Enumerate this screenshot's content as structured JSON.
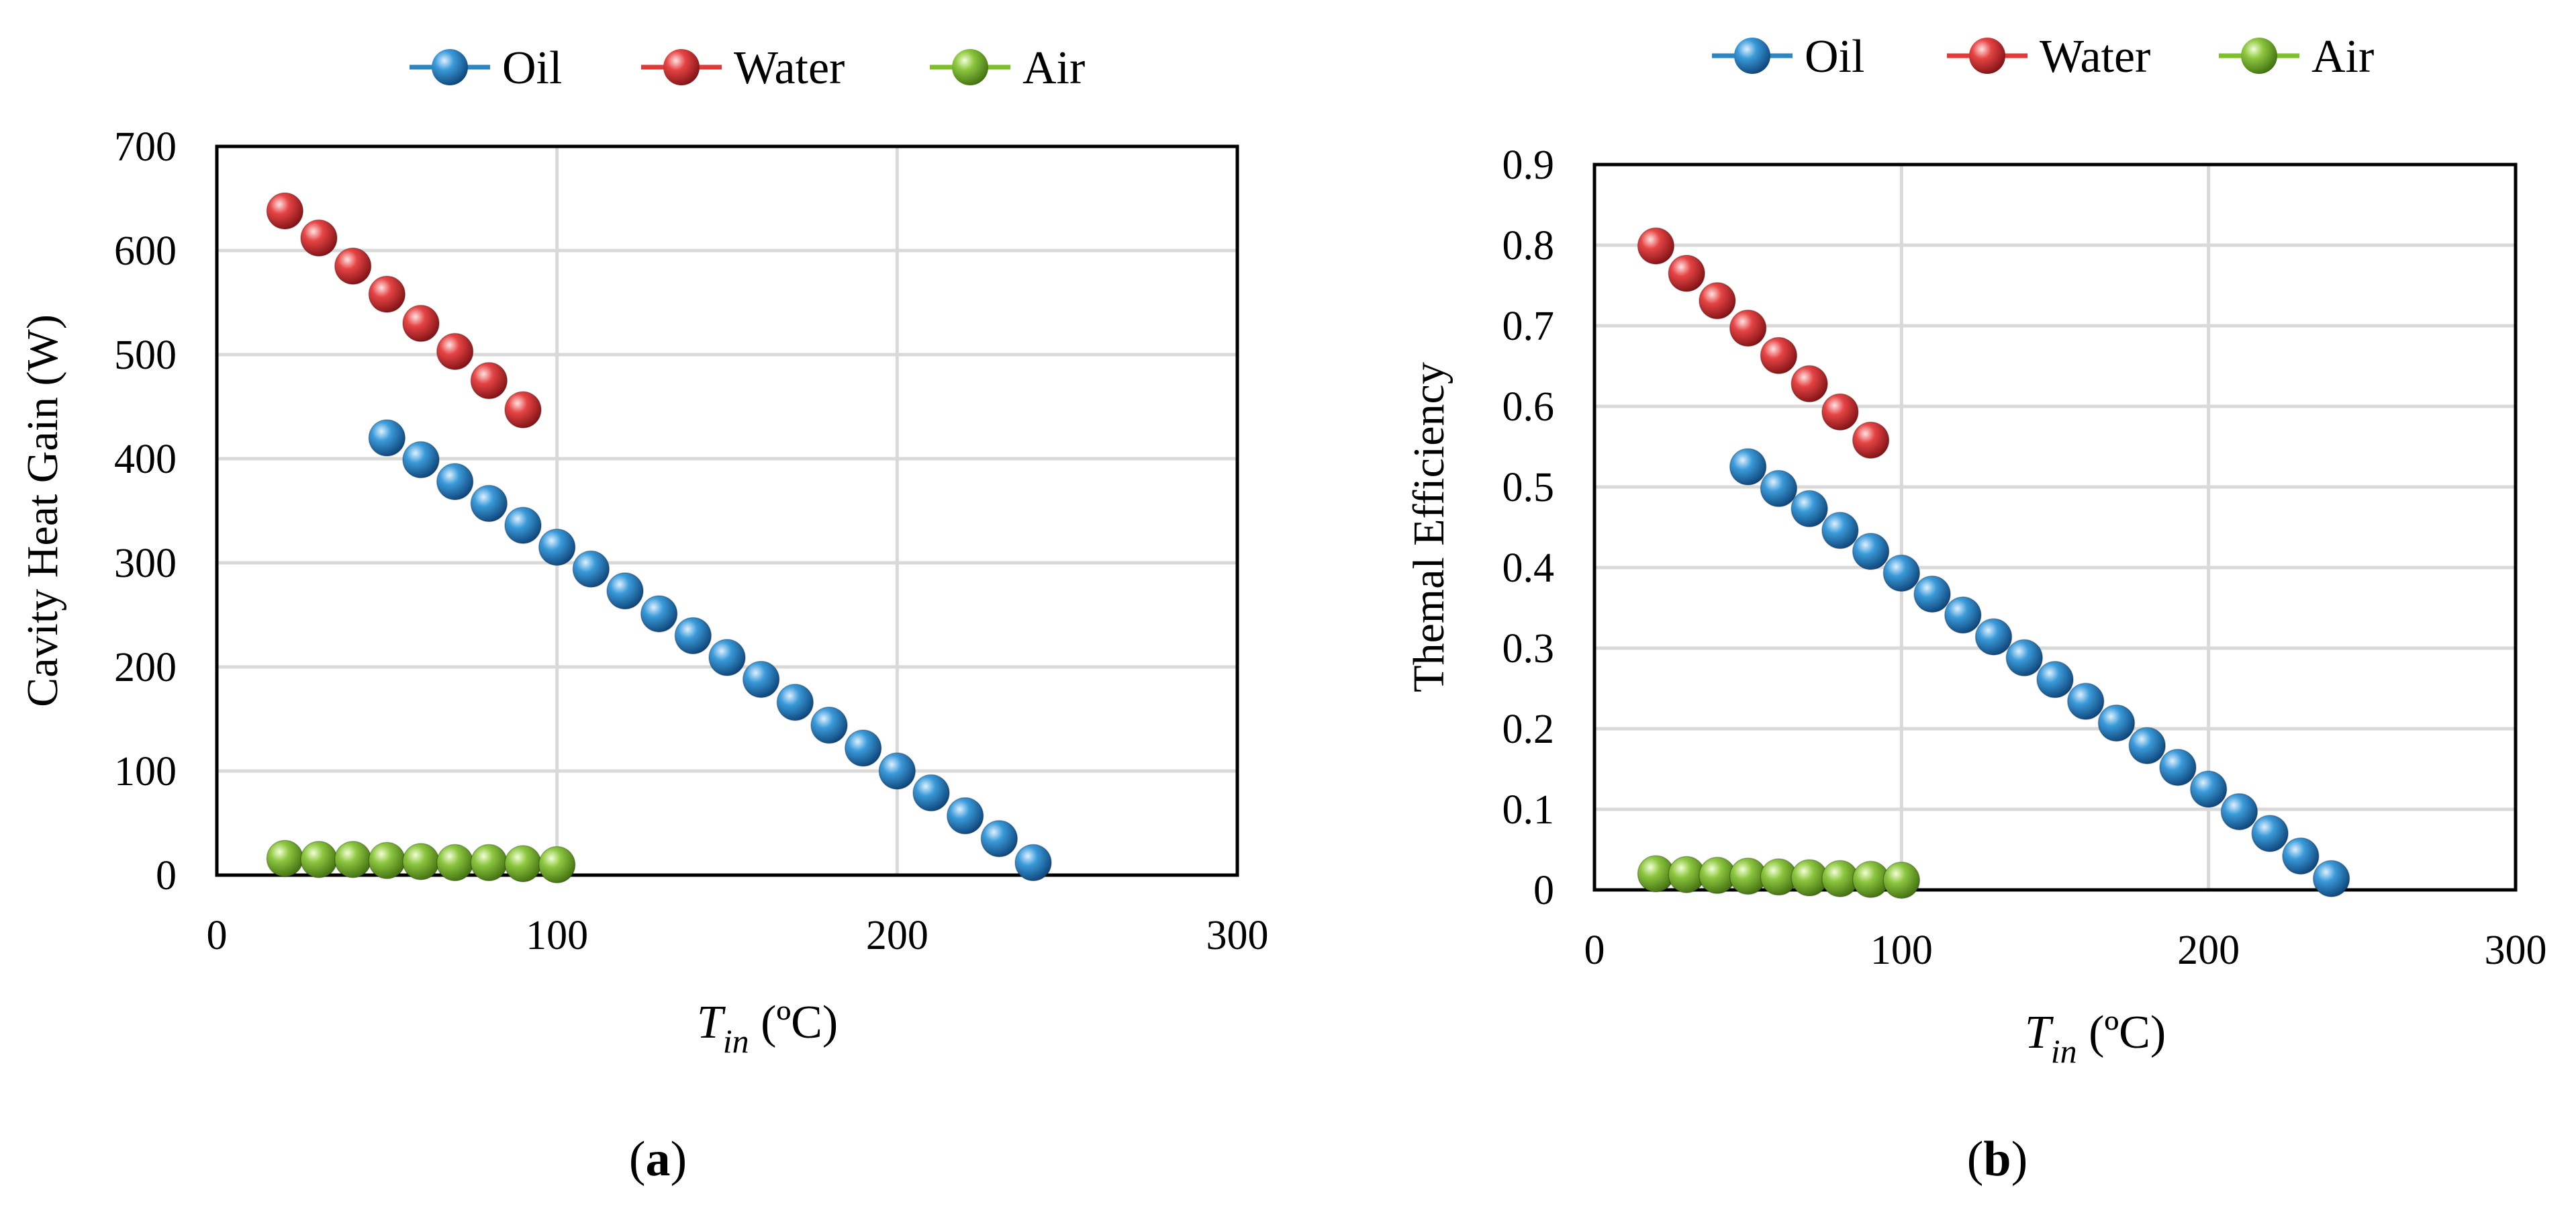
{
  "colors": {
    "Oil": "#2e86c1",
    "Water": "#e03a3a",
    "Air": "#7fbf2a",
    "grid": "#d9d9d9",
    "frame": "#000000"
  },
  "chart_data": [
    {
      "type": "scatter",
      "panel_label": "a",
      "title": "",
      "xlabel_symbol": "T",
      "xlabel_subscript": "in",
      "xlabel_unit": "(ºC)",
      "ylabel": "Cavity Heat Gain (W)",
      "xlim": [
        0,
        300
      ],
      "ylim": [
        0,
        700
      ],
      "xticks": [
        0,
        100,
        200,
        300
      ],
      "yticks": [
        0,
        100,
        200,
        300,
        400,
        500,
        600,
        700
      ],
      "grid": true,
      "legend_position": "top-center",
      "series": [
        {
          "name": "Oil",
          "x": [
            50,
            60,
            70,
            80,
            90,
            100,
            110,
            120,
            130,
            140,
            150,
            160,
            170,
            180,
            190,
            200,
            210,
            220,
            230,
            240
          ],
          "y": [
            420,
            399,
            378,
            357,
            336,
            315,
            294,
            273,
            251,
            230,
            209,
            188,
            166,
            144,
            122,
            100,
            79,
            57,
            35,
            12
          ]
        },
        {
          "name": "Water",
          "x": [
            20,
            30,
            40,
            50,
            60,
            70,
            80,
            90
          ],
          "y": [
            638,
            612,
            585,
            558,
            530,
            503,
            475,
            447
          ]
        },
        {
          "name": "Air",
          "x": [
            20,
            30,
            40,
            50,
            60,
            70,
            80,
            90,
            100
          ],
          "y": [
            16,
            15,
            15,
            14,
            13,
            12,
            12,
            11,
            10
          ]
        }
      ]
    },
    {
      "type": "scatter",
      "panel_label": "b",
      "title": "",
      "xlabel_symbol": "T",
      "xlabel_subscript": "in",
      "xlabel_unit": "(ºC)",
      "ylabel": "Themal Efficiency",
      "xlim": [
        0,
        300
      ],
      "ylim": [
        0,
        0.9
      ],
      "xticks": [
        0,
        100,
        200,
        300
      ],
      "yticks": [
        0,
        0.1,
        0.2,
        0.3,
        0.4,
        0.5,
        0.6,
        0.7,
        0.8,
        0.9
      ],
      "grid": true,
      "legend_position": "top-center",
      "series": [
        {
          "name": "Oil",
          "x": [
            50,
            60,
            70,
            80,
            90,
            100,
            110,
            120,
            130,
            140,
            150,
            160,
            170,
            180,
            190,
            200,
            210,
            220,
            230,
            240
          ],
          "y": [
            0.525,
            0.498,
            0.473,
            0.446,
            0.42,
            0.393,
            0.367,
            0.341,
            0.314,
            0.288,
            0.261,
            0.234,
            0.207,
            0.179,
            0.152,
            0.125,
            0.097,
            0.07,
            0.042,
            0.014
          ]
        },
        {
          "name": "Water",
          "x": [
            20,
            30,
            40,
            50,
            60,
            70,
            80,
            90
          ],
          "y": [
            0.799,
            0.765,
            0.731,
            0.697,
            0.663,
            0.628,
            0.593,
            0.558
          ]
        },
        {
          "name": "Air",
          "x": [
            20,
            30,
            40,
            50,
            60,
            70,
            80,
            90,
            100
          ],
          "y": [
            0.02,
            0.019,
            0.018,
            0.017,
            0.016,
            0.015,
            0.014,
            0.013,
            0.012
          ]
        }
      ]
    }
  ]
}
